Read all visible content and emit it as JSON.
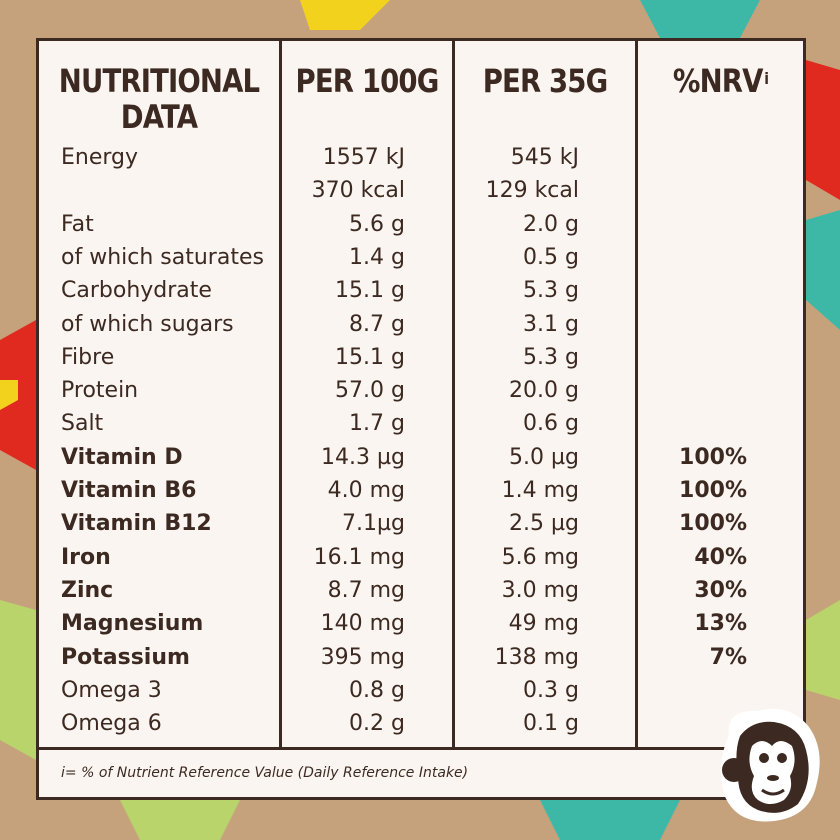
{
  "table": {
    "headers": {
      "nutritional_line1": "NUTRITIONAL",
      "nutritional_line2": "DATA",
      "per100": "PER 100G",
      "per35": "PER 35G",
      "nrv": "%NRV",
      "nrv_sup": "i"
    },
    "rows": [
      {
        "name": "Energy",
        "per100": "1557 kJ",
        "per35": "545 kJ",
        "nrv": ""
      },
      {
        "name": "",
        "per100": "370 kcal",
        "per35": "129 kcal",
        "nrv": ""
      },
      {
        "name": "Fat",
        "per100": "5.6 g",
        "per35": "2.0 g",
        "nrv": ""
      },
      {
        "name": "of which saturates",
        "per100": "1.4 g",
        "per35": "0.5 g",
        "nrv": ""
      },
      {
        "name": "Carbohydrate",
        "per100": "15.1 g",
        "per35": "5.3 g",
        "nrv": ""
      },
      {
        "name": "of which sugars",
        "per100": "8.7 g",
        "per35": "3.1 g",
        "nrv": ""
      },
      {
        "name": "Fibre",
        "per100": "15.1 g",
        "per35": "5.3 g",
        "nrv": ""
      },
      {
        "name": "Protein",
        "per100": "57.0 g",
        "per35": "20.0 g",
        "nrv": ""
      },
      {
        "name": "Salt",
        "per100": "1.7 g",
        "per35": "0.6 g",
        "nrv": ""
      },
      {
        "name": "Vitamin D",
        "per100": "14.3 µg",
        "per35": "5.0 µg",
        "nrv": "100%"
      },
      {
        "name": "Vitamin B6",
        "per100": "4.0 mg",
        "per35": "1.4 mg",
        "nrv": "100%"
      },
      {
        "name": "Vitamin B12",
        "per100": "7.1µg",
        "per35": "2.5 µg",
        "nrv": "100%"
      },
      {
        "name": "Iron",
        "per100": "16.1 mg",
        "per35": "5.6 mg",
        "nrv": "40%"
      },
      {
        "name": "Zinc",
        "per100": "8.7 mg",
        "per35": "3.0 mg",
        "nrv": "30%"
      },
      {
        "name": "Magnesium",
        "per100": "140 mg",
        "per35": "49 mg",
        "nrv": "13%"
      },
      {
        "name": "Potassium",
        "per100": "395 mg",
        "per35": "138 mg",
        "nrv": "7%"
      },
      {
        "name": "Omega 3",
        "per100": "0.8 g",
        "per35": "0.3 g",
        "nrv": ""
      },
      {
        "name": "Omega 6",
        "per100": "0.2 g",
        "per35": "0.1 g",
        "nrv": ""
      }
    ],
    "footnote": "i= % of Nutrient Reference Value (Daily Reference Intake)"
  },
  "colors": {
    "ink": "#3c2a22",
    "panel": "#faf5f0",
    "kraft": "#c6a27c"
  },
  "icons": {
    "mascot": "monkey-face-icon"
  }
}
